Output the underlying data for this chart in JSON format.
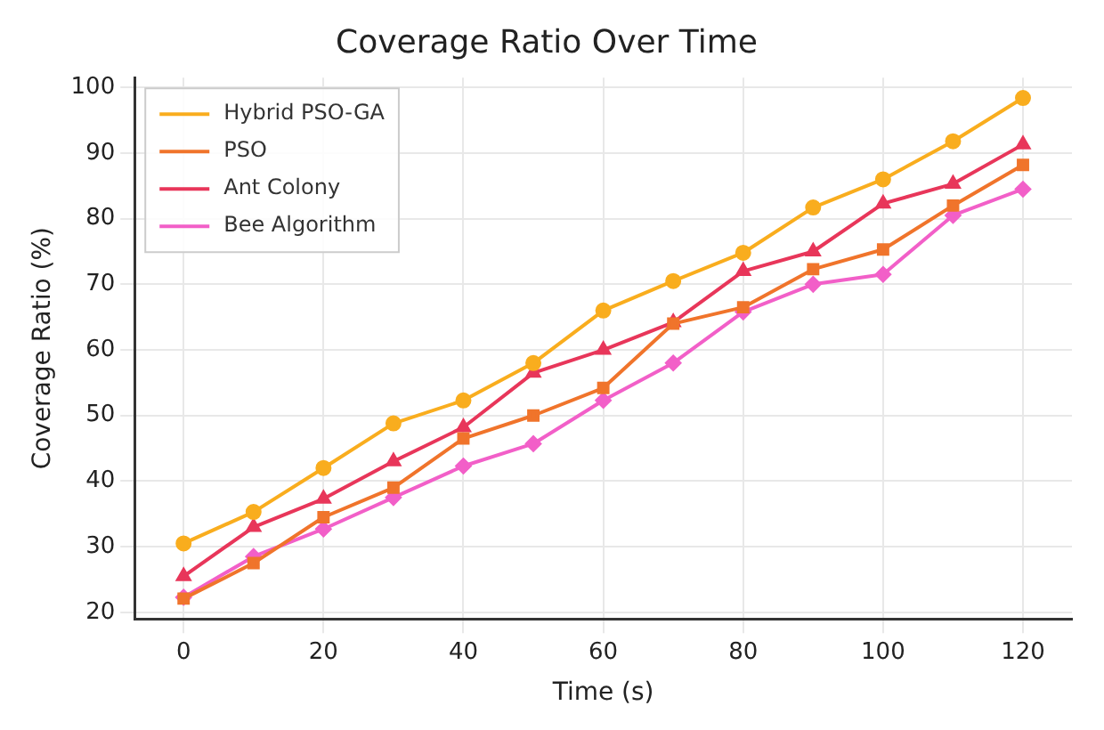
{
  "chart_data": {
    "type": "line",
    "title": "Coverage Ratio Over Time",
    "xlabel": "Time (s)",
    "ylabel": "Coverage Ratio (%)",
    "x": [
      0,
      10,
      20,
      30,
      40,
      50,
      60,
      70,
      80,
      90,
      100,
      110,
      120
    ],
    "series": [
      {
        "name": "Hybrid PSO-GA",
        "color": "#f9ad1e",
        "marker": "circle",
        "values": [
          30.5,
          35.3,
          42,
          48.8,
          52.3,
          58,
          66,
          70.5,
          74.8,
          81.7,
          86,
          91.8,
          98.4
        ]
      },
      {
        "name": "PSO",
        "color": "#f0742b",
        "marker": "square",
        "values": [
          22.1,
          27.5,
          34.5,
          39,
          46.5,
          50,
          54.2,
          64,
          66.5,
          72.3,
          75.3,
          82,
          88.2
        ]
      },
      {
        "name": "Ant Colony",
        "color": "#e8365a",
        "marker": "triangle",
        "values": [
          25.5,
          33,
          37.3,
          43,
          48.2,
          56.5,
          60,
          64.2,
          72,
          75,
          82.3,
          85.3,
          91.3
        ]
      },
      {
        "name": "Bee Algorithm",
        "color": "#f25fc8",
        "marker": "diamond",
        "values": [
          22.3,
          28.5,
          32.7,
          37.5,
          42.3,
          45.7,
          52.3,
          58,
          65.8,
          70,
          71.5,
          80.5,
          84.5
        ]
      }
    ],
    "xlim": [
      -7,
      127
    ],
    "xticks": [
      0,
      20,
      40,
      60,
      80,
      100,
      120
    ],
    "ylim": [
      19,
      101.5
    ],
    "yticks": [
      20,
      30,
      40,
      50,
      60,
      70,
      80,
      90,
      100
    ],
    "grid": true,
    "legend": "top left",
    "line_style": "solid"
  }
}
